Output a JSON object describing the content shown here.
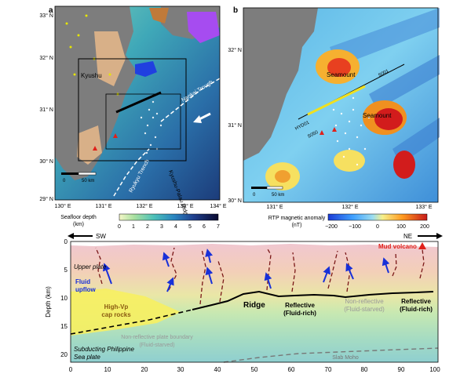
{
  "panel_a": {
    "label": "a",
    "lat_ticks": [
      "33° N",
      "32° N",
      "31° N",
      "30° N",
      "29° N"
    ],
    "lon_ticks": [
      "130° E",
      "131° E",
      "132° E",
      "133° E",
      "134° E"
    ],
    "place_labels": {
      "kyushu": "Kyushu",
      "nankai": "Nankai Trough",
      "ryukyu": "Ryukyu Trench",
      "kpr": "Kyushu-Palau Ridge"
    },
    "scale_label": "50 km",
    "scale_zero": "0",
    "colorbar": {
      "title": "Seafloor depth",
      "unit": "(km)",
      "ticks": [
        "0",
        "1",
        "2",
        "3",
        "4",
        "5",
        "6",
        "7"
      ]
    }
  },
  "panel_b": {
    "label": "b",
    "lat_ticks": [
      "32° N",
      "31° N",
      "30° N"
    ],
    "lon_ticks": [
      "131° E",
      "132° E",
      "133° E"
    ],
    "labels": {
      "seamount_1": "Seamount",
      "seamount_2": "Seamount",
      "hyd01": "HYD01",
      "s001": "S001",
      "s050": "S050"
    },
    "scale_label": "50 km",
    "scale_zero": "0",
    "colorbar": {
      "title": "RTP magnetic anomaly",
      "unit": "(nT)",
      "ticks": [
        "−200",
        "−100",
        "0",
        "100",
        "200"
      ]
    }
  },
  "panel_c": {
    "dir_left": "SW",
    "dir_right": "NE",
    "y_label": "Depth (km)",
    "y_ticks": [
      "0",
      "5",
      "10",
      "15",
      "20"
    ],
    "x_ticks": [
      "0",
      "10",
      "20",
      "30",
      "40",
      "50",
      "60",
      "70",
      "80",
      "90",
      "100"
    ],
    "labels": {
      "upper_plate": "Upper plate",
      "fluid": "Fluid",
      "upflow": "upflow",
      "highvp_1": "High-Vp",
      "highvp_2": "cap rocks",
      "ridge": "Ridge",
      "refl1_a": "Reflective",
      "refl1_b": "(Fluid-rich)",
      "nonrefl_a": "Non-reflective",
      "nonrefl_b": "(Fluid-starved)",
      "refl2_a": "Reflective",
      "refl2_b": "(Fluid-rich)",
      "nonrefl_pb_a": "Non-reflective plate boundary",
      "nonrefl_pb_b": "(Fluid-starved)",
      "subducting_a": "Subducting Philippine",
      "subducting_b": "Sea plate",
      "slab_moho": "Slab Moho",
      "mud_volcano": "Mud volcano"
    }
  }
}
